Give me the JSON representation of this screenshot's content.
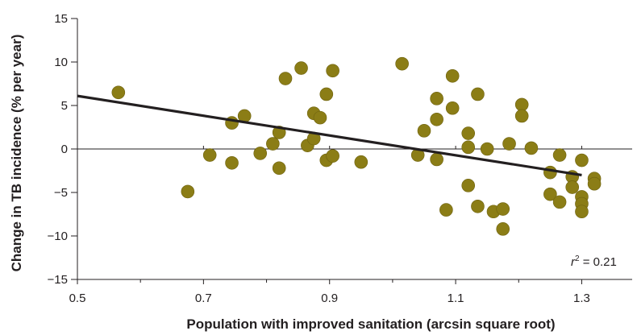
{
  "chart_data": {
    "type": "scatter",
    "xlabel": "Population with improved sanitation (arcsin square root)",
    "ylabel": "Change in TB incidence (% per year)",
    "xlim": [
      0.5,
      1.38
    ],
    "ylim": [
      -15,
      15
    ],
    "x_ticks": [
      "0.5",
      "0.7",
      "0.9",
      "1.1",
      "1.3"
    ],
    "y_ticks": [
      "15",
      "10",
      "5",
      "0",
      "−5",
      "−10",
      "−15"
    ],
    "grid": false,
    "zero_line": true,
    "annotation": {
      "r_label": "r",
      "r_sup": "2",
      "r_rest": " = 0.21"
    },
    "regression": {
      "x": [
        0.5,
        1.3
      ],
      "y": [
        6.1,
        -3.0
      ]
    },
    "colors": {
      "points": "#8b7d16",
      "point_stroke": "#6e6210",
      "line": "#231f20",
      "axis": "#231f20"
    },
    "points": [
      {
        "x": 0.565,
        "y": 6.5
      },
      {
        "x": 0.675,
        "y": -4.9
      },
      {
        "x": 0.71,
        "y": -0.7
      },
      {
        "x": 0.745,
        "y": 3.0
      },
      {
        "x": 0.745,
        "y": -1.6
      },
      {
        "x": 0.765,
        "y": 3.8
      },
      {
        "x": 0.79,
        "y": -0.5
      },
      {
        "x": 0.81,
        "y": 0.6
      },
      {
        "x": 0.82,
        "y": 1.9
      },
      {
        "x": 0.82,
        "y": -2.2
      },
      {
        "x": 0.83,
        "y": 8.1
      },
      {
        "x": 0.855,
        "y": 9.3
      },
      {
        "x": 0.865,
        "y": 0.4
      },
      {
        "x": 0.875,
        "y": 4.1
      },
      {
        "x": 0.875,
        "y": 1.2
      },
      {
        "x": 0.885,
        "y": 3.6
      },
      {
        "x": 0.895,
        "y": 6.3
      },
      {
        "x": 0.895,
        "y": -1.3
      },
      {
        "x": 0.905,
        "y": 9.0
      },
      {
        "x": 0.905,
        "y": -0.8
      },
      {
        "x": 0.95,
        "y": -1.5
      },
      {
        "x": 1.015,
        "y": 9.8
      },
      {
        "x": 1.04,
        "y": -0.7
      },
      {
        "x": 1.05,
        "y": 2.1
      },
      {
        "x": 1.07,
        "y": 5.8
      },
      {
        "x": 1.07,
        "y": 3.4
      },
      {
        "x": 1.07,
        "y": -1.2
      },
      {
        "x": 1.085,
        "y": -7.0
      },
      {
        "x": 1.095,
        "y": 8.4
      },
      {
        "x": 1.095,
        "y": 4.7
      },
      {
        "x": 1.12,
        "y": 1.8
      },
      {
        "x": 1.12,
        "y": 0.2
      },
      {
        "x": 1.12,
        "y": -4.2
      },
      {
        "x": 1.135,
        "y": 6.3
      },
      {
        "x": 1.135,
        "y": -6.6
      },
      {
        "x": 1.15,
        "y": 0.0
      },
      {
        "x": 1.16,
        "y": -7.2
      },
      {
        "x": 1.175,
        "y": -6.9
      },
      {
        "x": 1.175,
        "y": -9.2
      },
      {
        "x": 1.185,
        "y": 0.6
      },
      {
        "x": 1.205,
        "y": 5.1
      },
      {
        "x": 1.205,
        "y": 3.8
      },
      {
        "x": 1.22,
        "y": 0.1
      },
      {
        "x": 1.25,
        "y": -2.7
      },
      {
        "x": 1.25,
        "y": -5.2
      },
      {
        "x": 1.265,
        "y": -0.7
      },
      {
        "x": 1.265,
        "y": -6.1
      },
      {
        "x": 1.285,
        "y": -3.2
      },
      {
        "x": 1.285,
        "y": -4.4
      },
      {
        "x": 1.3,
        "y": -1.3
      },
      {
        "x": 1.3,
        "y": -5.5
      },
      {
        "x": 1.3,
        "y": -6.3
      },
      {
        "x": 1.3,
        "y": -7.2
      },
      {
        "x": 1.32,
        "y": -3.4
      },
      {
        "x": 1.32,
        "y": -4.0
      }
    ]
  }
}
